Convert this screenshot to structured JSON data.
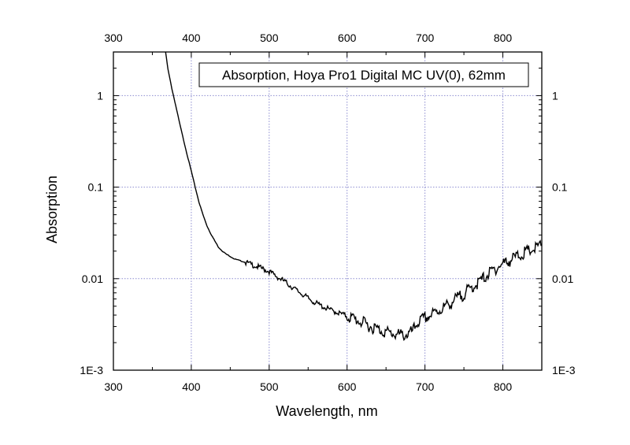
{
  "chart_data": {
    "type": "line",
    "title": "",
    "xlabel": "Wavelength, nm",
    "ylabel": "Absorption",
    "xlim": [
      300,
      850
    ],
    "ylim": [
      0.001,
      3
    ],
    "yscale": "log",
    "x_ticks": [
      300,
      400,
      500,
      600,
      700,
      800
    ],
    "x_tick_labels": [
      "300",
      "400",
      "500",
      "600",
      "700",
      "800"
    ],
    "y_ticks": [
      0.001,
      0.01,
      0.1,
      1
    ],
    "y_tick_labels": [
      "1E-3",
      "0.01",
      "0.1",
      "1"
    ],
    "grid": true,
    "mirror_axes": true,
    "legend_placement": "top-right",
    "colors": {
      "line": "#000000",
      "grid": "#8c8cd0",
      "frame": "#000000"
    },
    "series": [
      {
        "name": "Absorption, Hoya Pro1 Digital MC UV(0), 62mm",
        "x": [
          367,
          370,
          375,
          380,
          385,
          390,
          395,
          400,
          405,
          410,
          415,
          420,
          425,
          430,
          435,
          440,
          445,
          450,
          455,
          460,
          470,
          480,
          490,
          500,
          510,
          520,
          530,
          540,
          550,
          560,
          570,
          580,
          590,
          600,
          610,
          620,
          630,
          640,
          650,
          660,
          670,
          680,
          685,
          690,
          700,
          710,
          720,
          730,
          740,
          750,
          760,
          770,
          780,
          790,
          800,
          810,
          820,
          830,
          840,
          850
        ],
        "y": [
          3.0,
          1.95,
          1.2,
          0.78,
          0.5,
          0.33,
          0.22,
          0.15,
          0.1,
          0.068,
          0.05,
          0.038,
          0.031,
          0.026,
          0.022,
          0.02,
          0.0185,
          0.0175,
          0.0165,
          0.016,
          0.015,
          0.014,
          0.013,
          0.012,
          0.0105,
          0.0093,
          0.008,
          0.007,
          0.0061,
          0.0054,
          0.0049,
          0.0045,
          0.0042,
          0.0039,
          0.0036,
          0.0033,
          0.003,
          0.0028,
          0.0026,
          0.0025,
          0.0024,
          0.0025,
          0.0027,
          0.0033,
          0.0037,
          0.0041,
          0.0046,
          0.0052,
          0.006,
          0.0068,
          0.008,
          0.0092,
          0.011,
          0.0128,
          0.0145,
          0.016,
          0.0178,
          0.0195,
          0.021,
          0.0232
        ]
      }
    ]
  }
}
